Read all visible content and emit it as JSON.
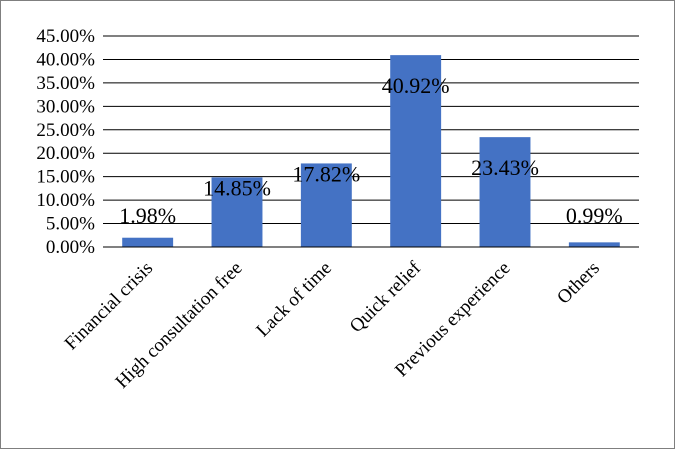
{
  "chart_data": {
    "type": "bar",
    "categories": [
      "Financial crisis",
      "High consultation free",
      "Lack of time",
      "Quick relief",
      "Previous experience",
      "Others"
    ],
    "values": [
      1.98,
      14.85,
      17.82,
      40.92,
      23.43,
      0.99
    ],
    "data_labels": [
      "1.98%",
      "14.85%",
      "17.82%",
      "40.92%",
      "23.43%",
      "0.99%"
    ],
    "y_ticks": [
      0,
      5,
      10,
      15,
      20,
      25,
      30,
      35,
      40,
      45
    ],
    "y_tick_labels": [
      "0.00%",
      "5.00%",
      "10.00%",
      "15.00%",
      "20.00%",
      "25.00%",
      "30.00%",
      "35.00%",
      "40.00%",
      "45.00%"
    ],
    "ylim": [
      0,
      45
    ],
    "grid": true,
    "legend": "none",
    "title": "",
    "xlabel": "",
    "ylabel": "",
    "bar_color": "#4472C4",
    "grid_color": "#000000"
  }
}
